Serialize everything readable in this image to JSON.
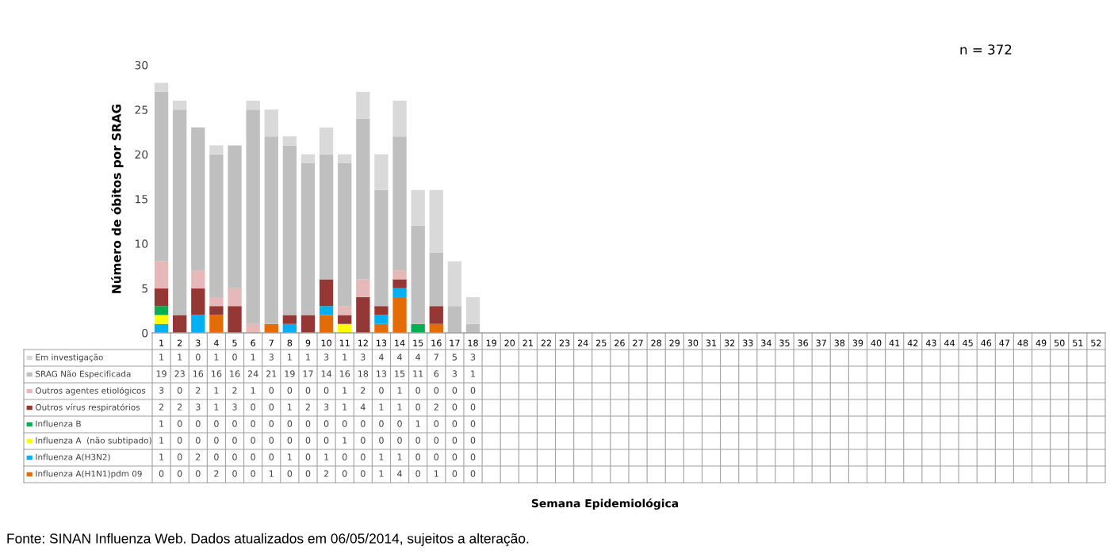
{
  "chart_data": {
    "type": "bar",
    "stacked": true,
    "data_labels": true,
    "legend": "bottom left",
    "grid": false,
    "annotations": [
      "n = 372",
      "Semana Epidemiológica",
      "Fonte: SINAN Influenza Web. Dados atualizados em 06/05/2014, sujeitos a alteração."
    ],
    "ylabel": "Número de óbitos por SRAG",
    "ylim": [
      0,
      30
    ],
    "yticks": [
      0,
      5,
      10,
      15,
      20,
      25,
      30
    ],
    "categories": [
      "1",
      "2",
      "3",
      "4",
      "5",
      "6",
      "7",
      "8",
      "9",
      "10",
      "11",
      "12",
      "13",
      "14",
      "15",
      "16",
      "17",
      "18",
      "19",
      "20",
      "21",
      "22",
      "23",
      "24",
      "25",
      "26",
      "27",
      "28",
      "29",
      "30",
      "31",
      "32",
      "33",
      "34",
      "35",
      "36",
      "37",
      "38",
      "39",
      "40",
      "41",
      "42",
      "43",
      "44",
      "45",
      "46",
      "47",
      "48",
      "49",
      "50",
      "51",
      "52"
    ],
    "series": [
      {
        "name": "Influenza A(H1N1)pdm 09",
        "color": "#e36c09",
        "values": [
          0,
          0,
          0,
          2,
          0,
          0,
          1,
          0,
          0,
          2,
          0,
          0,
          1,
          4,
          0,
          1,
          0,
          0,
          null,
          null,
          null,
          null,
          null,
          null,
          null,
          null,
          null,
          null,
          null,
          null,
          null,
          null,
          null,
          null,
          null,
          null,
          null,
          null,
          null,
          null,
          null,
          null,
          null,
          null,
          null,
          null,
          null,
          null,
          null,
          null,
          null,
          null
        ]
      },
      {
        "name": "Influenza A(H3N2)",
        "color": "#00b0f0",
        "values": [
          1,
          0,
          2,
          0,
          0,
          0,
          0,
          1,
          0,
          1,
          0,
          0,
          1,
          1,
          0,
          0,
          0,
          0,
          null,
          null,
          null,
          null,
          null,
          null,
          null,
          null,
          null,
          null,
          null,
          null,
          null,
          null,
          null,
          null,
          null,
          null,
          null,
          null,
          null,
          null,
          null,
          null,
          null,
          null,
          null,
          null,
          null,
          null,
          null,
          null,
          null,
          null
        ]
      },
      {
        "name": "Influenza A  (não subtipado)",
        "color": "#ffff00",
        "values": [
          1,
          0,
          0,
          0,
          0,
          0,
          0,
          0,
          0,
          0,
          1,
          0,
          0,
          0,
          0,
          0,
          0,
          0,
          null,
          null,
          null,
          null,
          null,
          null,
          null,
          null,
          null,
          null,
          null,
          null,
          null,
          null,
          null,
          null,
          null,
          null,
          null,
          null,
          null,
          null,
          null,
          null,
          null,
          null,
          null,
          null,
          null,
          null,
          null,
          null,
          null,
          null
        ]
      },
      {
        "name": "Influenza B",
        "color": "#00b050",
        "values": [
          1,
          0,
          0,
          0,
          0,
          0,
          0,
          0,
          0,
          0,
          0,
          0,
          0,
          0,
          1,
          0,
          0,
          0,
          null,
          null,
          null,
          null,
          null,
          null,
          null,
          null,
          null,
          null,
          null,
          null,
          null,
          null,
          null,
          null,
          null,
          null,
          null,
          null,
          null,
          null,
          null,
          null,
          null,
          null,
          null,
          null,
          null,
          null,
          null,
          null,
          null,
          null
        ]
      },
      {
        "name": "Outros vírus respiratórios",
        "color": "#953735",
        "values": [
          2,
          2,
          3,
          1,
          3,
          0,
          0,
          1,
          2,
          3,
          1,
          4,
          1,
          1,
          0,
          2,
          0,
          0,
          null,
          null,
          null,
          null,
          null,
          null,
          null,
          null,
          null,
          null,
          null,
          null,
          null,
          null,
          null,
          null,
          null,
          null,
          null,
          null,
          null,
          null,
          null,
          null,
          null,
          null,
          null,
          null,
          null,
          null,
          null,
          null,
          null,
          null
        ]
      },
      {
        "name": "Outros agentes etiológicos",
        "color": "#e6b9b8",
        "values": [
          3,
          0,
          2,
          1,
          2,
          1,
          0,
          0,
          0,
          0,
          1,
          2,
          0,
          1,
          0,
          0,
          0,
          0,
          null,
          null,
          null,
          null,
          null,
          null,
          null,
          null,
          null,
          null,
          null,
          null,
          null,
          null,
          null,
          null,
          null,
          null,
          null,
          null,
          null,
          null,
          null,
          null,
          null,
          null,
          null,
          null,
          null,
          null,
          null,
          null,
          null,
          null
        ]
      },
      {
        "name": "SRAG Não Especificada",
        "color": "#bfbfbf",
        "values": [
          19,
          23,
          16,
          16,
          16,
          24,
          21,
          19,
          17,
          14,
          16,
          18,
          13,
          15,
          11,
          6,
          3,
          1,
          null,
          null,
          null,
          null,
          null,
          null,
          null,
          null,
          null,
          null,
          null,
          null,
          null,
          null,
          null,
          null,
          null,
          null,
          null,
          null,
          null,
          null,
          null,
          null,
          null,
          null,
          null,
          null,
          null,
          null,
          null,
          null,
          null,
          null
        ]
      },
      {
        "name": "Em investigação",
        "color": "#d9d9d9",
        "values": [
          1,
          1,
          0,
          1,
          0,
          1,
          3,
          1,
          1,
          3,
          1,
          3,
          4,
          4,
          4,
          7,
          5,
          3,
          null,
          null,
          null,
          null,
          null,
          null,
          null,
          null,
          null,
          null,
          null,
          null,
          null,
          null,
          null,
          null,
          null,
          null,
          null,
          null,
          null,
          null,
          null,
          null,
          null,
          null,
          null,
          null,
          null,
          null,
          null,
          null,
          null,
          null
        ]
      }
    ]
  }
}
